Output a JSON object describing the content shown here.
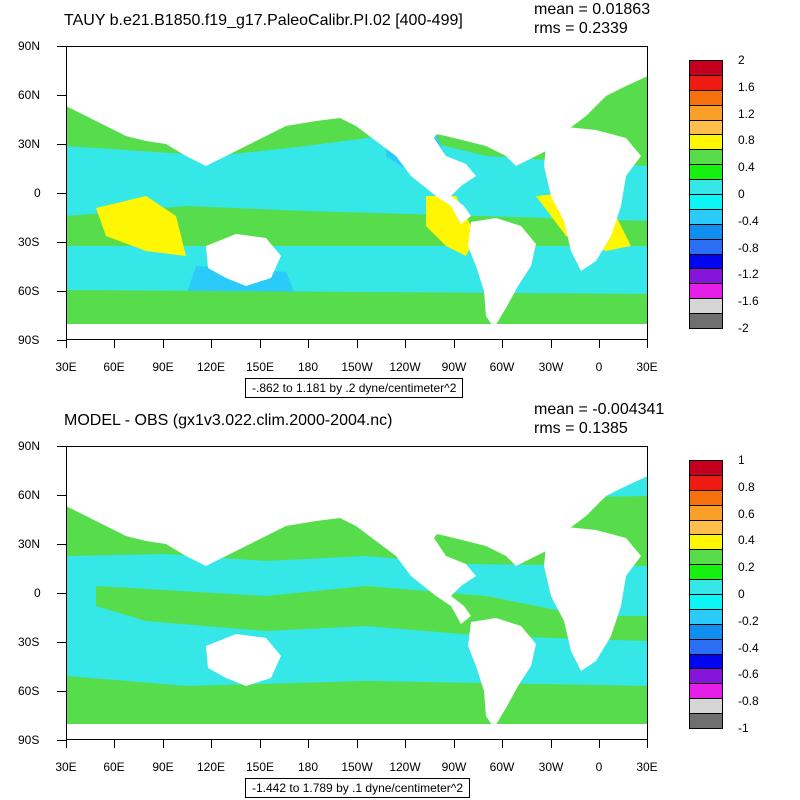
{
  "top": {
    "title": "TAUY b.e21.B1850.f19_g17.PaleoCalibr.PI.02 [400-499]",
    "mean": "mean = 0.01863",
    "rms": "rms = 0.2339",
    "info": "-.862 to 1.181 by .2 dyne/centimeter^2",
    "colorbar": {
      "labels": [
        "2",
        "1.6",
        "1.2",
        "0.8",
        "0.4",
        "0",
        "-0.4",
        "-0.8",
        "-1.2",
        "-1.6",
        "-2"
      ],
      "colors": [
        "#c3001e",
        "#ef1b13",
        "#f7700e",
        "#fa9f28",
        "#fdbe4b",
        "#fef602",
        "#57dc4c",
        "#16f011",
        "#35e7e6",
        "#0cf6f7",
        "#2acaf9",
        "#118fef",
        "#2a6ef3",
        "#0006ef",
        "#8515d8",
        "#e51ee8",
        "#d5d5d5",
        "#6f6f6f"
      ]
    }
  },
  "bottom": {
    "title": "MODEL - OBS (gx1v3.022.clim.2000-2004.nc)",
    "mean": "mean = -0.004341",
    "rms": "rms = 0.1385",
    "info": "-1.442 to 1.789 by .1 dyne/centimeter^2",
    "colorbar": {
      "labels": [
        "1",
        "0.8",
        "0.6",
        "0.4",
        "0.2",
        "0",
        "-0.2",
        "-0.4",
        "-0.6",
        "-0.8",
        "-1"
      ],
      "colors": [
        "#c3001e",
        "#ef1b13",
        "#f7700e",
        "#fa9f28",
        "#fdbe4b",
        "#fef602",
        "#57dc4c",
        "#16f011",
        "#35e7e6",
        "#0cf6f7",
        "#2acaf9",
        "#118fef",
        "#2a6ef3",
        "#0006ef",
        "#8515d8",
        "#e51ee8",
        "#d5d5d5",
        "#6f6f6f"
      ]
    }
  },
  "axes": {
    "lat_labels": [
      "90N",
      "60N",
      "30N",
      "0",
      "30S",
      "60S",
      "90S"
    ],
    "lon_labels": [
      "30E",
      "60E",
      "90E",
      "120E",
      "150E",
      "180",
      "150W",
      "120W",
      "90W",
      "60W",
      "30W",
      "0",
      "30E"
    ]
  }
}
